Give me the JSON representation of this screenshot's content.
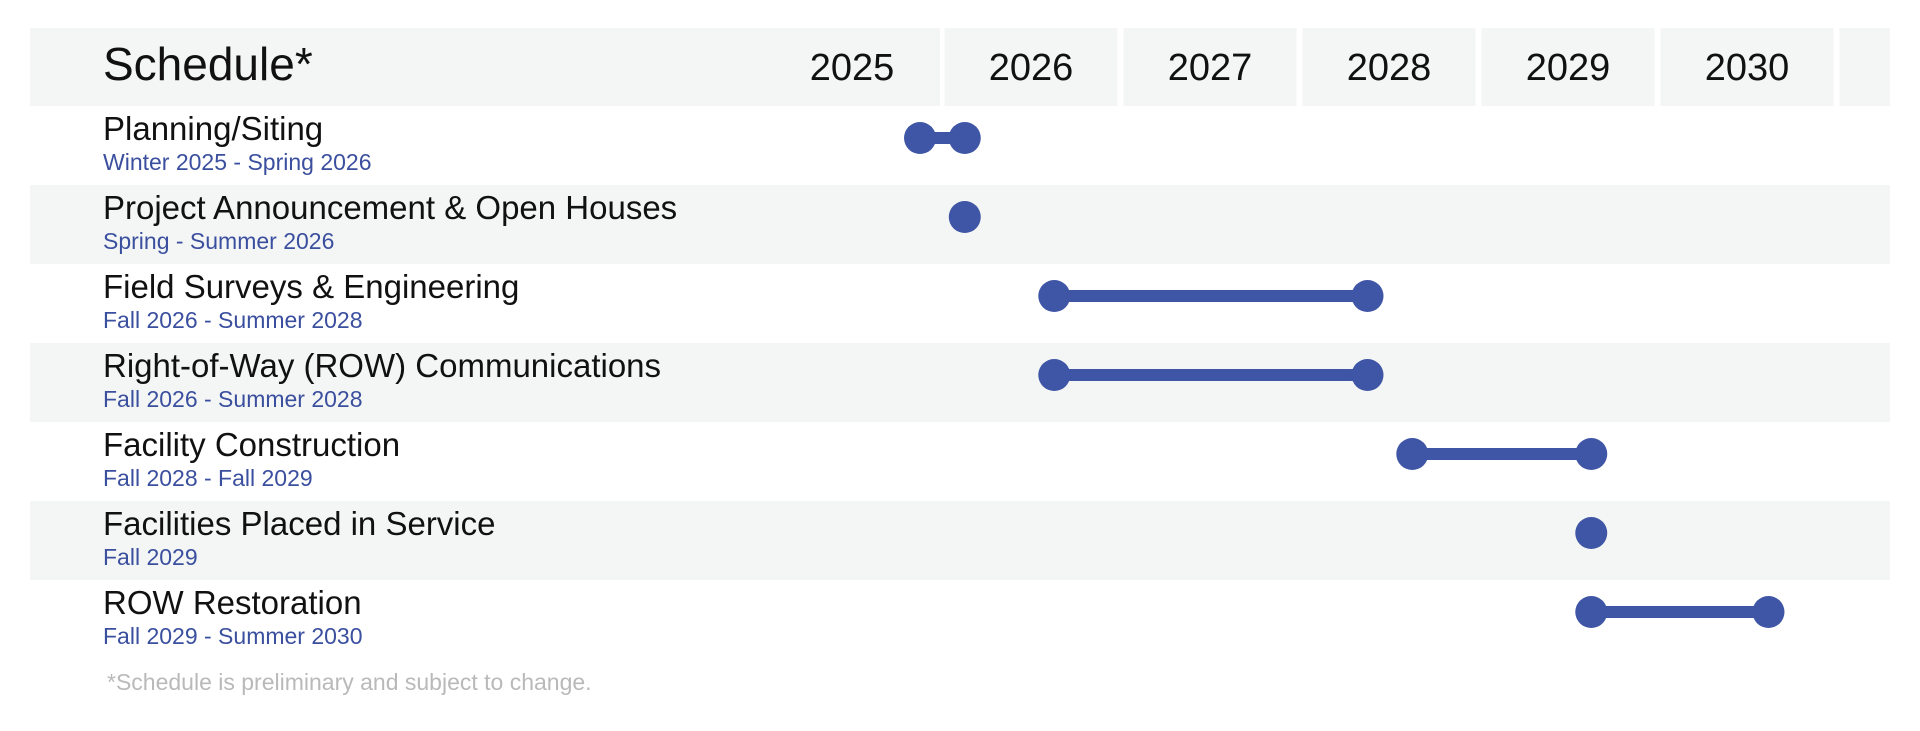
{
  "chart_data": {
    "type": "gantt",
    "title": "Schedule*",
    "years": [
      "2025",
      "2026",
      "2027",
      "2028",
      "2029",
      "2030"
    ],
    "tasks": [
      {
        "name": "Planning/Siting",
        "dates": "Winter 2025 - Spring 2026",
        "start": 2025.38,
        "end": 2025.63
      },
      {
        "name": "Project Announcement & Open Houses",
        "dates": "Spring - Summer 2026",
        "start": 2025.63,
        "end": 2025.63
      },
      {
        "name": "Field Surveys & Engineering",
        "dates": "Fall 2026 - Summer 2028",
        "start": 2026.13,
        "end": 2027.88
      },
      {
        "name": "Right-of-Way (ROW) Communications",
        "dates": "Fall 2026 - Summer 2028",
        "start": 2026.13,
        "end": 2027.88
      },
      {
        "name": "Facility Construction",
        "dates": "Fall 2028 - Fall 2029",
        "start": 2028.13,
        "end": 2029.13
      },
      {
        "name": "Facilities Placed in Service",
        "dates": "Fall 2029",
        "start": 2029.13,
        "end": 2029.13
      },
      {
        "name": "ROW Restoration",
        "dates": "Fall 2029 - Summer 2030",
        "start": 2029.13,
        "end": 2030.12
      }
    ],
    "footnote": "*Schedule is preliminary and subject to change.",
    "colors": {
      "bar": "#3f55a5",
      "dates_text": "#3b4f9f",
      "band": "#f4f6f5",
      "footnote": "#b9b9b9"
    }
  }
}
